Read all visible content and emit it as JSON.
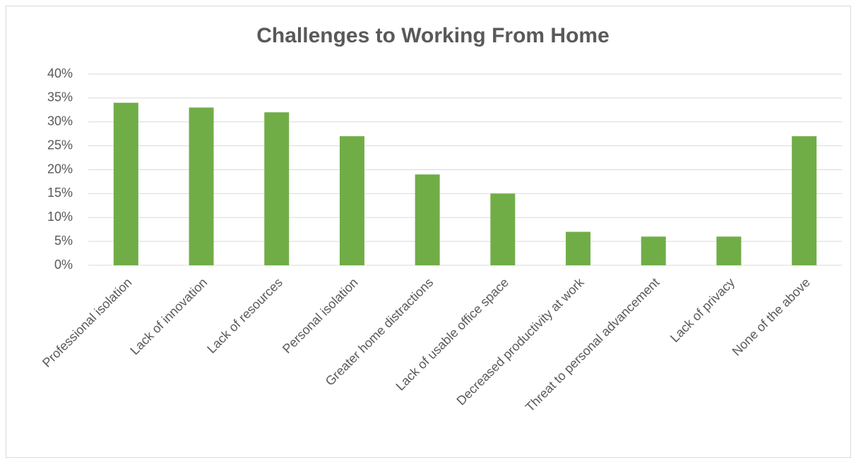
{
  "chart_data": {
    "type": "bar",
    "title": "Challenges to Working From Home",
    "categories": [
      "Professional isolation",
      "Lack of innovation",
      "Lack of resources",
      "Personal isolation",
      "Greater home distractions",
      "Lack of usable office space",
      "Decreased productivity at work",
      "Threat to personal advancement",
      "Lack of privacy",
      "None of the above"
    ],
    "values": [
      34,
      33,
      32,
      27,
      19,
      15,
      7,
      6,
      6,
      27
    ],
    "color": "#70ad47",
    "ylim": [
      0,
      40
    ],
    "yticks": [
      {
        "value": 0,
        "label": "0%"
      },
      {
        "value": 5,
        "label": "5%"
      },
      {
        "value": 10,
        "label": "10%"
      },
      {
        "value": 15,
        "label": "15%"
      },
      {
        "value": 20,
        "label": "20%"
      },
      {
        "value": 25,
        "label": "25%"
      },
      {
        "value": 30,
        "label": "30%"
      },
      {
        "value": 35,
        "label": "35%"
      },
      {
        "value": 40,
        "label": "40%"
      }
    ],
    "grid": true
  }
}
